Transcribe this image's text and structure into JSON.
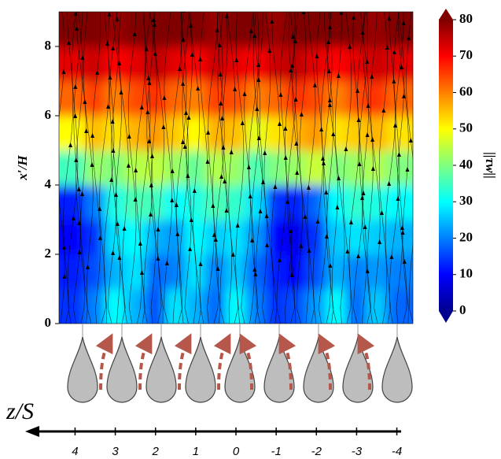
{
  "chart_data": {
    "type": "contour",
    "x_label": "z/S",
    "y_label": "x′/H",
    "colorbar_label": "||τw||",
    "colormap": "jet",
    "x": [
      4,
      3.5,
      3,
      2.5,
      2,
      1.5,
      1,
      0.5,
      0,
      -0.5,
      -1,
      -1.5,
      -2,
      -2.5,
      -3,
      -3.5,
      -4
    ],
    "y": [
      0.5,
      1.5,
      2.5,
      3.5,
      4.5,
      5.5,
      6.5,
      7.5,
      8.5
    ],
    "values": [
      [
        14,
        20,
        30,
        24,
        16,
        28,
        24,
        18,
        30,
        20,
        14,
        16,
        22,
        30,
        18,
        26,
        18
      ],
      [
        12,
        16,
        24,
        28,
        18,
        20,
        28,
        20,
        26,
        18,
        12,
        10,
        16,
        24,
        20,
        22,
        20
      ],
      [
        10,
        14,
        28,
        30,
        24,
        22,
        30,
        26,
        28,
        22,
        10,
        8,
        14,
        26,
        28,
        26,
        24
      ],
      [
        12,
        20,
        32,
        36,
        35,
        30,
        32,
        36,
        34,
        28,
        14,
        12,
        18,
        30,
        34,
        32,
        30
      ],
      [
        35,
        42,
        40,
        44,
        45,
        42,
        38,
        44,
        42,
        36,
        40,
        42,
        46,
        40,
        42,
        44,
        40
      ],
      [
        50,
        55,
        52,
        56,
        58,
        54,
        50,
        56,
        55,
        48,
        52,
        56,
        58,
        52,
        54,
        56,
        52
      ],
      [
        62,
        65,
        60,
        64,
        66,
        62,
        60,
        65,
        64,
        60,
        62,
        66,
        64,
        60,
        64,
        66,
        62
      ],
      [
        72,
        74,
        70,
        72,
        75,
        72,
        70,
        74,
        72,
        70,
        74,
        75,
        72,
        70,
        72,
        74,
        72
      ],
      [
        80,
        80,
        78,
        80,
        80,
        80,
        80,
        78,
        80,
        80,
        78,
        80,
        80,
        80,
        80,
        78,
        80
      ]
    ],
    "xlim": [
      4.4,
      -4.4
    ],
    "ylim": [
      0,
      9
    ],
    "xticks": [
      4,
      3,
      2,
      1,
      0,
      -1,
      -2,
      -3,
      -4
    ],
    "yticks": [
      0,
      2,
      4,
      6,
      8
    ],
    "clim": [
      0,
      80
    ],
    "cticks": [
      0,
      10,
      20,
      30,
      40,
      50,
      60,
      70,
      80
    ]
  }
}
